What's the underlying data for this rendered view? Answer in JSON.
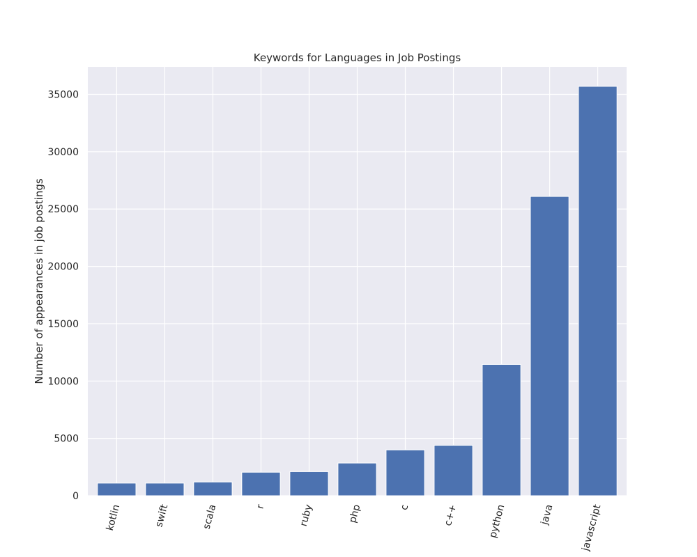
{
  "chart_data": {
    "type": "bar",
    "title": "Keywords for Languages in Job Postings",
    "xlabel": "",
    "ylabel": "Number of appearances in job postings",
    "categories": [
      "kotlin",
      "swift",
      "scala",
      "r",
      "ruby",
      "php",
      "c",
      "c++",
      "python",
      "java",
      "javascript"
    ],
    "values": [
      1100,
      1100,
      1200,
      2050,
      2100,
      2850,
      4000,
      4400,
      11450,
      26100,
      35700
    ],
    "ylim": [
      0,
      37400
    ],
    "yticks": [
      0,
      5000,
      10000,
      15000,
      20000,
      25000,
      30000,
      35000
    ],
    "ytick_labels": [
      "0",
      "5000",
      "10000",
      "15000",
      "20000",
      "25000",
      "30000",
      "35000"
    ],
    "grid": true,
    "bar_color": "#4c72b0",
    "background_color": "#eaeaf2",
    "grid_color": "#ffffff",
    "xtick_rotation_deg": 75
  }
}
